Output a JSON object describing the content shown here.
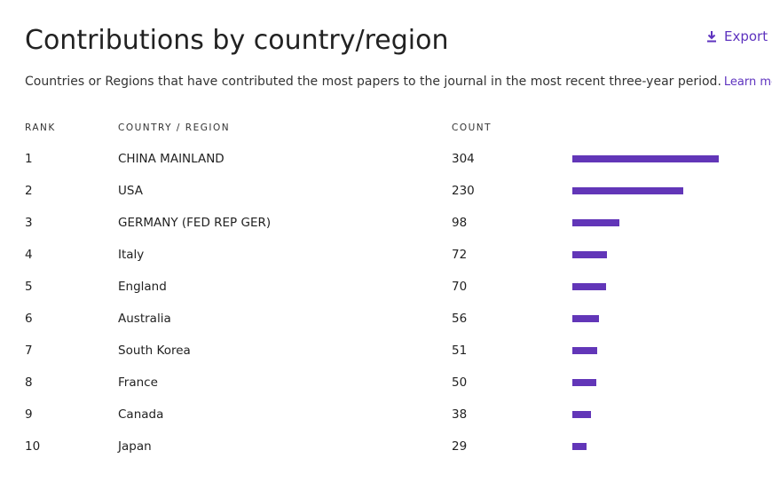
{
  "header": {
    "title": "Contributions by country/region",
    "export": "Export"
  },
  "description": {
    "text": "Countries or Regions that have contributed the most papers to the journal in the most recent three-year period.",
    "link": "Learn more"
  },
  "table": {
    "columns": [
      "RANK",
      "COUNTRY / REGION",
      "COUNT"
    ],
    "rows": [
      {
        "rank": 1,
        "country": "CHINA MAINLAND",
        "count": 304
      },
      {
        "rank": 2,
        "country": "USA",
        "count": 230
      },
      {
        "rank": 3,
        "country": "GERMANY (FED REP GER)",
        "count": 98
      },
      {
        "rank": 4,
        "country": "Italy",
        "count": 72
      },
      {
        "rank": 5,
        "country": "England",
        "count": 70
      },
      {
        "rank": 6,
        "country": "Australia",
        "count": 56
      },
      {
        "rank": 7,
        "country": "South Korea",
        "count": 51
      },
      {
        "rank": 8,
        "country": "France",
        "count": 50
      },
      {
        "rank": 9,
        "country": "Canada",
        "count": 38
      },
      {
        "rank": 10,
        "country": "Japan",
        "count": 29
      }
    ]
  }
}
